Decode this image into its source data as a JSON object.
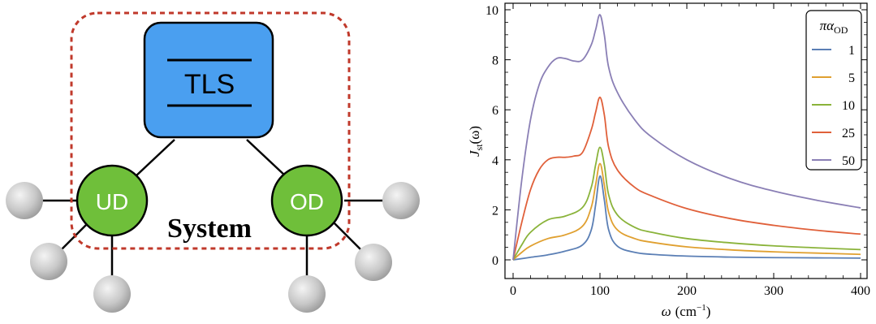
{
  "diagram": {
    "tls_label": "TLS",
    "ud_label": "UD",
    "od_label": "OD",
    "system_label": "System",
    "colors": {
      "tls_fill": "#4a9ff0",
      "node_fill": "#6fbf3a",
      "system_border": "#c0392b",
      "bath_sphere": "#c8c8c8"
    }
  },
  "chart_data": {
    "type": "line",
    "xlabel_main": "ω",
    "xlabel_unit": "(cm",
    "xlabel_exp": "−1",
    "xlabel_close": ")",
    "ylabel_main": "J",
    "ylabel_sub": "st",
    "ylabel_arg": "(ω)",
    "xlim": [
      0,
      400
    ],
    "ylim": [
      0,
      10
    ],
    "xticks": [
      0,
      100,
      200,
      300,
      400
    ],
    "yticks": [
      0,
      2,
      4,
      6,
      8,
      10
    ],
    "legend": {
      "placement": "top-right",
      "title_main": "πα",
      "title_sub": "OD"
    },
    "series": [
      {
        "name": "1",
        "color": "#5b7fb5",
        "x": [
          0,
          20,
          40,
          60,
          80,
          90,
          95,
          100,
          105,
          110,
          120,
          140,
          160,
          200,
          250,
          300,
          350,
          400
        ],
        "y": [
          0,
          0.1,
          0.2,
          0.35,
          0.6,
          1.2,
          2.2,
          3.35,
          2.4,
          1.2,
          0.55,
          0.3,
          0.22,
          0.15,
          0.11,
          0.09,
          0.08,
          0.07
        ]
      },
      {
        "name": "5",
        "color": "#e0a030",
        "x": [
          0,
          10,
          20,
          40,
          60,
          80,
          90,
          95,
          100,
          105,
          110,
          120,
          140,
          160,
          200,
          250,
          300,
          350,
          400
        ],
        "y": [
          0,
          0.3,
          0.55,
          0.85,
          1.0,
          1.35,
          2.1,
          3.0,
          3.85,
          3.0,
          1.9,
          1.2,
          0.85,
          0.7,
          0.52,
          0.4,
          0.32,
          0.27,
          0.22
        ]
      },
      {
        "name": "10",
        "color": "#8ab33a",
        "x": [
          0,
          10,
          20,
          40,
          60,
          80,
          90,
          95,
          100,
          105,
          110,
          120,
          140,
          160,
          200,
          250,
          300,
          350,
          400
        ],
        "y": [
          0,
          0.6,
          1.1,
          1.6,
          1.75,
          2.1,
          2.9,
          3.8,
          4.5,
          3.8,
          2.6,
          1.8,
          1.3,
          1.1,
          0.85,
          0.68,
          0.56,
          0.48,
          0.41
        ]
      },
      {
        "name": "25",
        "color": "#e0603a",
        "x": [
          0,
          10,
          20,
          30,
          40,
          50,
          60,
          70,
          80,
          90,
          95,
          100,
          105,
          110,
          120,
          140,
          160,
          200,
          250,
          300,
          350,
          400
        ],
        "y": [
          0,
          1.5,
          2.8,
          3.6,
          4.0,
          4.1,
          4.1,
          4.15,
          4.3,
          5.2,
          5.9,
          6.5,
          5.8,
          4.5,
          3.6,
          2.9,
          2.55,
          2.05,
          1.65,
          1.38,
          1.18,
          1.03
        ]
      },
      {
        "name": "50",
        "color": "#8a7fb5",
        "x": [
          0,
          10,
          20,
          30,
          40,
          50,
          60,
          70,
          80,
          90,
          95,
          100,
          105,
          110,
          120,
          140,
          160,
          200,
          250,
          300,
          350,
          400
        ],
        "y": [
          0,
          3.2,
          5.6,
          7.0,
          7.7,
          8.05,
          8.05,
          7.95,
          8.0,
          8.6,
          9.2,
          9.8,
          9.0,
          7.7,
          6.7,
          5.6,
          4.9,
          4.0,
          3.25,
          2.75,
          2.38,
          2.08
        ]
      }
    ]
  }
}
